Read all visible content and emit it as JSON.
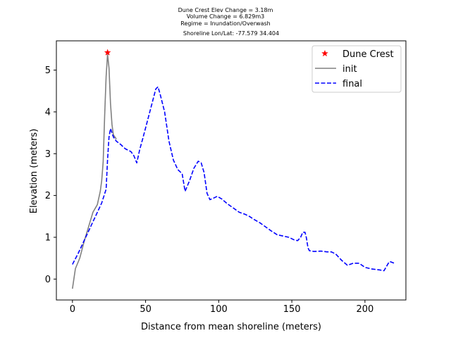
{
  "chart_data": {
    "type": "line",
    "title_lines": [
      "Dune Crest Elev Change = 3.18m",
      "Volume Change = 6.829m3",
      "Regime = Inundation/Overwash",
      "Shoreline Lon/Lat: -77.579 34.404"
    ],
    "xlabel": "Distance from mean shoreline (meters)",
    "ylabel": "Elevation (meters)",
    "xlim": [
      -11,
      228
    ],
    "ylim": [
      -0.5,
      5.7
    ],
    "xticks": [
      0,
      50,
      100,
      150,
      200
    ],
    "yticks": [
      0,
      1,
      2,
      3,
      4,
      5
    ],
    "legend_position": "top-right",
    "dune_crest": {
      "name": "Dune Crest",
      "x": 24,
      "y": 5.42,
      "color": "#ff0000",
      "marker": "star"
    },
    "series": [
      {
        "name": "init",
        "color": "#808080",
        "style": "solid",
        "x": [
          0,
          2,
          5,
          8,
          11,
          14,
          17,
          19,
          20,
          21,
          22,
          23,
          24,
          25,
          26,
          27,
          28,
          30
        ],
        "y": [
          -0.23,
          0.25,
          0.5,
          0.9,
          1.25,
          1.6,
          1.78,
          2.1,
          2.35,
          2.8,
          3.9,
          4.85,
          5.38,
          5.05,
          4.2,
          3.7,
          3.45,
          3.35
        ]
      },
      {
        "name": "final",
        "color": "#0000ff",
        "style": "dashed",
        "x": [
          0,
          4,
          8,
          12,
          16,
          20,
          23,
          24,
          25,
          26,
          27,
          28,
          30,
          33,
          36,
          40,
          42,
          44,
          46,
          48,
          51,
          54,
          57,
          58.5,
          60,
          63,
          66,
          69,
          72,
          75,
          77,
          80,
          83,
          86,
          88,
          90,
          92,
          94,
          96,
          99,
          102,
          106,
          110,
          114,
          118,
          121,
          124,
          128,
          132,
          136,
          140,
          144,
          148,
          152,
          154,
          156,
          157.5,
          159,
          160,
          161,
          162,
          165,
          170,
          174,
          177,
          180,
          184,
          188,
          192,
          196,
          200,
          205,
          210,
          213,
          216,
          217,
          220
        ],
        "y": [
          0.35,
          0.62,
          0.92,
          1.22,
          1.52,
          1.82,
          2.15,
          2.85,
          3.4,
          3.6,
          3.5,
          3.4,
          3.3,
          3.22,
          3.12,
          3.05,
          2.95,
          2.78,
          3.1,
          3.35,
          3.75,
          4.15,
          4.55,
          4.6,
          4.42,
          4.0,
          3.3,
          2.85,
          2.62,
          2.52,
          2.1,
          2.35,
          2.65,
          2.82,
          2.78,
          2.55,
          2.05,
          1.9,
          1.93,
          1.98,
          1.92,
          1.8,
          1.7,
          1.6,
          1.55,
          1.5,
          1.43,
          1.35,
          1.25,
          1.15,
          1.06,
          1.03,
          1.0,
          0.93,
          0.92,
          1.0,
          1.12,
          1.12,
          0.98,
          0.75,
          0.68,
          0.66,
          0.67,
          0.65,
          0.65,
          0.6,
          0.45,
          0.33,
          0.38,
          0.38,
          0.28,
          0.24,
          0.22,
          0.2,
          0.38,
          0.42,
          0.38
        ]
      }
    ]
  }
}
